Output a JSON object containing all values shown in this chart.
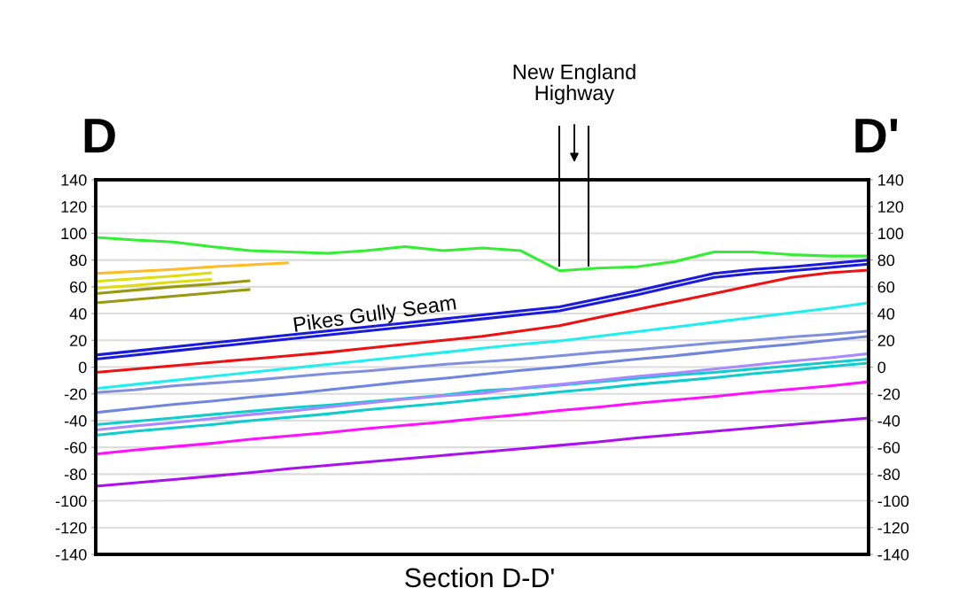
{
  "chart_data": {
    "type": "line",
    "title": "Section D-D'",
    "categories": [
      null,
      null,
      null,
      null,
      null,
      null,
      null,
      null,
      null,
      null,
      null,
      null,
      null,
      null,
      null,
      null,
      null,
      null,
      null,
      null,
      null
    ],
    "series": [
      {
        "color": "#33ee33",
        "values": [
          97,
          95,
          93.5,
          90,
          87,
          86,
          85,
          87,
          90,
          87,
          89,
          87,
          72,
          74,
          75,
          79,
          86,
          86,
          84,
          83,
          83
        ]
      },
      {
        "color": "#ffbb22",
        "values": [
          70,
          71.5,
          73,
          75,
          76.5,
          78,
          null,
          null,
          null,
          null,
          null,
          null,
          null,
          null,
          null,
          null,
          null,
          null,
          null,
          null,
          null
        ]
      },
      {
        "color": "#dddd11",
        "values": [
          64,
          66,
          68,
          70.5,
          null,
          null,
          null,
          null,
          null,
          null,
          null,
          null,
          null,
          null,
          null,
          null,
          null,
          null,
          null,
          null,
          null
        ]
      },
      {
        "color": "#dddd11",
        "values": [
          59,
          61,
          63.5,
          65.5,
          null,
          null,
          null,
          null,
          null,
          null,
          null,
          null,
          null,
          null,
          null,
          null,
          null,
          null,
          null,
          null,
          null
        ]
      },
      {
        "color": "#999911",
        "values": [
          55,
          57.5,
          60,
          62,
          64.5,
          null,
          null,
          null,
          null,
          null,
          null,
          null,
          null,
          null,
          null,
          null,
          null,
          null,
          null,
          null,
          null
        ]
      },
      {
        "color": "#999911",
        "values": [
          48,
          50.5,
          53,
          55.5,
          58,
          null,
          null,
          null,
          null,
          null,
          null,
          null,
          null,
          null,
          null,
          null,
          null,
          null,
          null,
          null,
          null
        ]
      },
      {
        "color": "#1a1adc",
        "values": [
          9,
          12,
          15,
          18,
          21,
          24,
          27,
          30,
          33,
          36,
          39,
          42,
          45,
          51,
          57,
          63.5,
          70,
          73,
          75,
          77.5,
          80
        ]
      },
      {
        "color": "#1a1adc",
        "values": [
          6,
          9,
          12,
          15,
          18,
          21,
          24,
          27,
          30,
          33,
          36,
          39,
          42,
          48,
          54,
          60.5,
          67,
          70,
          72,
          74.5,
          77
        ]
      },
      {
        "color": "#ee1111",
        "values": [
          -4,
          -1.5,
          1,
          3.5,
          6,
          8.5,
          11,
          14,
          17,
          20,
          23,
          27,
          31,
          37,
          43,
          49,
          55,
          61,
          67,
          70.5,
          72.5
        ]
      },
      {
        "color": "#22eeee",
        "values": [
          -16,
          -13,
          -10,
          -7,
          -4,
          -1,
          2,
          5,
          8,
          11,
          14,
          17,
          19.5,
          23,
          26.5,
          30,
          33.5,
          37,
          40.5,
          44,
          48
        ]
      },
      {
        "color": "#8090dd",
        "values": [
          -19,
          -17,
          -14,
          -12,
          -10,
          -7.5,
          -5,
          -3,
          -0.5,
          2,
          4,
          6,
          8.5,
          11,
          13,
          15.5,
          18,
          20,
          22.5,
          24.5,
          27
        ]
      },
      {
        "color": "#7085dd",
        "values": [
          -34,
          -31,
          -28,
          -25.5,
          -22.5,
          -20,
          -17,
          -14,
          -11,
          -8.5,
          -5.5,
          -2.5,
          0,
          3,
          6,
          8.5,
          11.5,
          14.5,
          17,
          20,
          23
        ]
      },
      {
        "color": "#11cccc",
        "values": [
          -43,
          -40.5,
          -38,
          -35.5,
          -33,
          -30.5,
          -28.5,
          -26,
          -23.5,
          -21,
          -17.5,
          -16,
          -13.5,
          -11,
          -8.5,
          -6,
          -4,
          -1.5,
          1,
          3.5,
          6
        ]
      },
      {
        "color": "#aa88ff",
        "values": [
          -47,
          -44,
          -41.5,
          -38.5,
          -35.5,
          -33,
          -30,
          -27,
          -24,
          -21.5,
          -19.5,
          -15.5,
          -13,
          -10,
          -7,
          -4.5,
          -1.5,
          1.5,
          4.5,
          7,
          10
        ]
      },
      {
        "color": "#11cccc",
        "values": [
          -51,
          -48,
          -45.5,
          -43,
          -40,
          -37.5,
          -35,
          -32,
          -29.5,
          -27,
          -24,
          -21.5,
          -18.5,
          -16,
          -13,
          -10.5,
          -8,
          -5,
          -2.5,
          0.5,
          3
        ]
      },
      {
        "color": "#ff11ff",
        "values": [
          -65,
          -62,
          -59.5,
          -57,
          -54,
          -51.5,
          -49,
          -46,
          -43.5,
          -41,
          -38,
          -35.5,
          -32.5,
          -30,
          -27,
          -24.5,
          -22,
          -19,
          -16.5,
          -14,
          -11
        ]
      },
      {
        "color": "#aa11ee",
        "values": [
          -89,
          -86.5,
          -84,
          -81.5,
          -79,
          -76,
          -73.5,
          -71,
          -68.5,
          -66,
          -63.5,
          -61,
          -58.5,
          -56,
          -53,
          -50.5,
          -48,
          -45.5,
          -43,
          -40.5,
          -38
        ]
      }
    ],
    "ylim": [
      -140,
      140
    ],
    "yticks": [
      -140,
      -120,
      -100,
      -80,
      -60,
      -40,
      -20,
      0,
      20,
      40,
      60,
      80,
      100,
      120,
      140
    ],
    "y2lim": [
      -140,
      140
    ],
    "y2ticks": [
      -140,
      -120,
      -100,
      -80,
      -60,
      -40,
      -20,
      0,
      20,
      40,
      60,
      80,
      100,
      120,
      140
    ],
    "grid": "y",
    "legend": false,
    "annotations": [
      "D",
      "D'",
      "New England\nHighway",
      "Pikes Gully Seam"
    ]
  }
}
